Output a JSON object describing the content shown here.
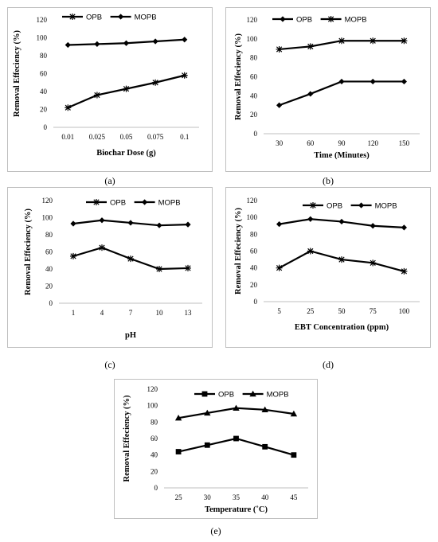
{
  "chart_data": [
    {
      "id": "a",
      "type": "line",
      "caption": "(a)",
      "xlabel": "Biochar Dose (g)",
      "ylabel": "Removal  Effeciency (%)",
      "categories": [
        "0.01",
        "0.025",
        "0.05",
        "0.075",
        "0.1"
      ],
      "ylim": [
        0,
        120
      ],
      "yticks": [
        0,
        20,
        40,
        60,
        80,
        100,
        120
      ],
      "legend": "top-left",
      "series": [
        {
          "name": "OPB",
          "marker": "star",
          "values": [
            22,
            36,
            43,
            50,
            58
          ]
        },
        {
          "name": "MOPB",
          "marker": "diamond",
          "values": [
            92,
            93,
            94,
            96,
            98
          ]
        }
      ]
    },
    {
      "id": "b",
      "type": "line",
      "caption": "(b)",
      "xlabel": "Time (Minutes)",
      "ylabel": "Removal Effeciency (%)",
      "categories": [
        "30",
        "60",
        "90",
        "120",
        "150"
      ],
      "ylim": [
        0,
        120
      ],
      "yticks": [
        0,
        20,
        40,
        60,
        80,
        100,
        120
      ],
      "legend": "top-left",
      "series": [
        {
          "name": "OPB",
          "marker": "diamond",
          "values": [
            30,
            42,
            55,
            55,
            55
          ]
        },
        {
          "name": "MOPB",
          "marker": "star",
          "values": [
            89,
            92,
            98,
            98,
            98
          ]
        }
      ]
    },
    {
      "id": "c",
      "type": "line",
      "caption": "(c)",
      "xlabel": "pH",
      "ylabel": "Removal Effeciency (%)",
      "categories": [
        "1",
        "4",
        "7",
        "10",
        "13"
      ],
      "ylim": [
        0,
        120
      ],
      "yticks": [
        0,
        20,
        40,
        60,
        80,
        100,
        120
      ],
      "legend": "top",
      "series": [
        {
          "name": "OPB",
          "marker": "star",
          "values": [
            55,
            65,
            52,
            40,
            41
          ]
        },
        {
          "name": "MOPB",
          "marker": "diamond",
          "values": [
            93,
            97,
            94,
            91,
            92
          ]
        }
      ]
    },
    {
      "id": "d",
      "type": "line",
      "caption": "(d)",
      "xlabel": "EBT Concentration (ppm)",
      "ylabel": "Removal Effeciency (%)",
      "categories": [
        "5",
        "25",
        "50",
        "75",
        "100"
      ],
      "ylim": [
        0,
        120
      ],
      "yticks": [
        0,
        20,
        40,
        60,
        80,
        100,
        120
      ],
      "legend": "top",
      "series": [
        {
          "name": "OPB",
          "marker": "star",
          "values": [
            40,
            60,
            50,
            46,
            36
          ]
        },
        {
          "name": "MOPB",
          "marker": "diamond",
          "values": [
            92,
            98,
            95,
            90,
            88
          ]
        }
      ]
    },
    {
      "id": "e",
      "type": "line",
      "caption": "(e)",
      "xlabel": "Temperature (˚C)",
      "ylabel": "Removal Effeciency (%)",
      "categories": [
        "25",
        "30",
        "35",
        "40",
        "45"
      ],
      "ylim": [
        0,
        120
      ],
      "yticks": [
        0,
        20,
        40,
        60,
        80,
        100,
        120
      ],
      "legend": "top",
      "series": [
        {
          "name": "OPB",
          "marker": "square",
          "values": [
            44,
            52,
            60,
            50,
            40
          ]
        },
        {
          "name": "MOPB",
          "marker": "triangle",
          "values": [
            85,
            91,
            97,
            95,
            90
          ]
        }
      ]
    }
  ]
}
